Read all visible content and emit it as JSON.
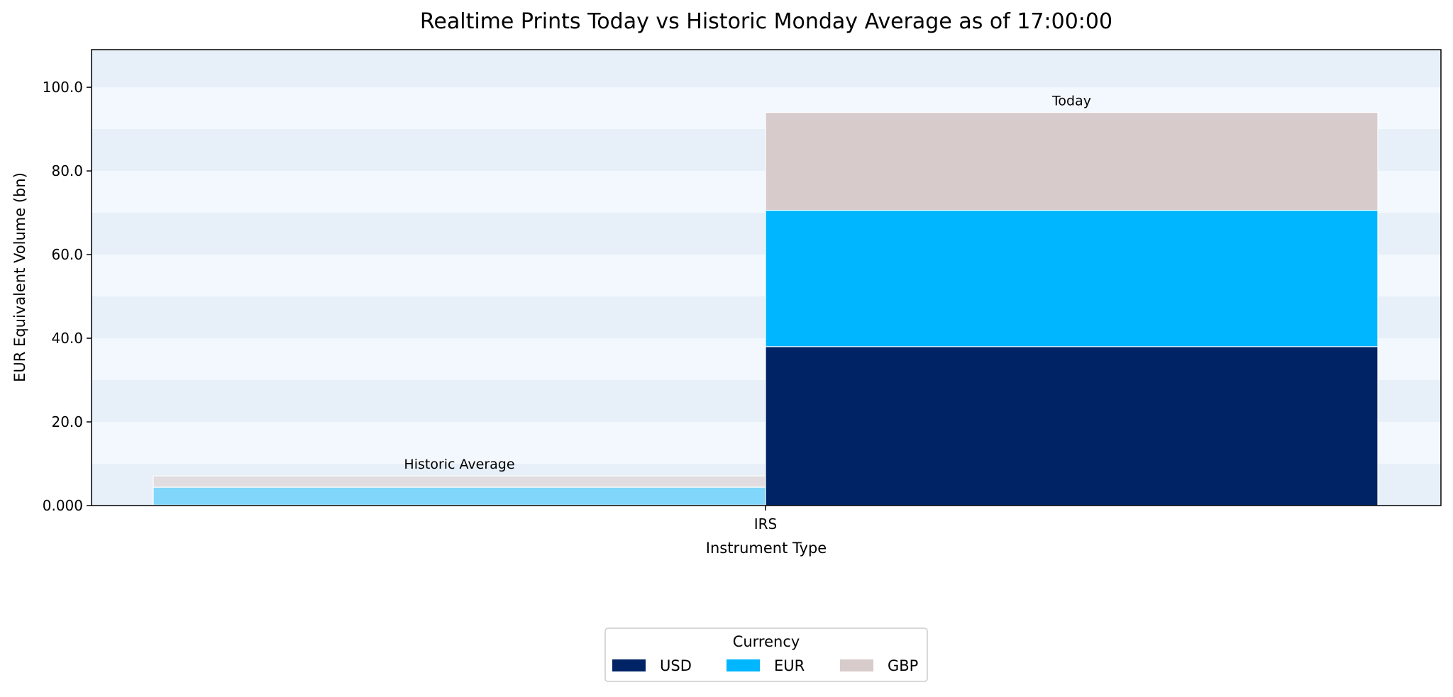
{
  "chart_data": {
    "type": "bar",
    "stacked": true,
    "title": "Realtime Prints Today vs Historic Monday Average as of 17:00:00",
    "xlabel": "Instrument Type",
    "ylabel": "EUR Equivalent Volume (bn)",
    "categories": [
      "IRS"
    ],
    "ylim": [
      0,
      109
    ],
    "yticks": [
      0,
      20,
      40,
      60,
      80,
      100
    ],
    "ytick_labels": [
      "0.000",
      "20.0",
      "40.0",
      "60.0",
      "80.0",
      "100.0"
    ],
    "grid": "alternating horizontal bands",
    "groups": [
      {
        "label": "Historic Average",
        "segments": [
          {
            "currency": "USD",
            "value": 0.1,
            "color": "#e2e4ef"
          },
          {
            "currency": "EUR",
            "value": 4.3,
            "color": "#80d7fb"
          },
          {
            "currency": "GBP",
            "value": 2.7,
            "color": "#e1dcdf"
          }
        ]
      },
      {
        "label": "Today",
        "segments": [
          {
            "currency": "USD",
            "value": 38.0,
            "color": "#002366"
          },
          {
            "currency": "EUR",
            "value": 32.6,
            "color": "#00b6ff"
          },
          {
            "currency": "GBP",
            "value": 23.4,
            "color": "#d8cbcb"
          }
        ]
      }
    ],
    "legend": {
      "title": "Currency",
      "placement": "bottom-center",
      "entries": [
        {
          "name": "USD",
          "color": "#002366"
        },
        {
          "name": "EUR",
          "color": "#00b6ff"
        },
        {
          "name": "GBP",
          "color": "#d8cbcb"
        }
      ]
    },
    "colors": {
      "band_light": "#f3f8fe",
      "band_dark": "#e7eff8"
    }
  }
}
